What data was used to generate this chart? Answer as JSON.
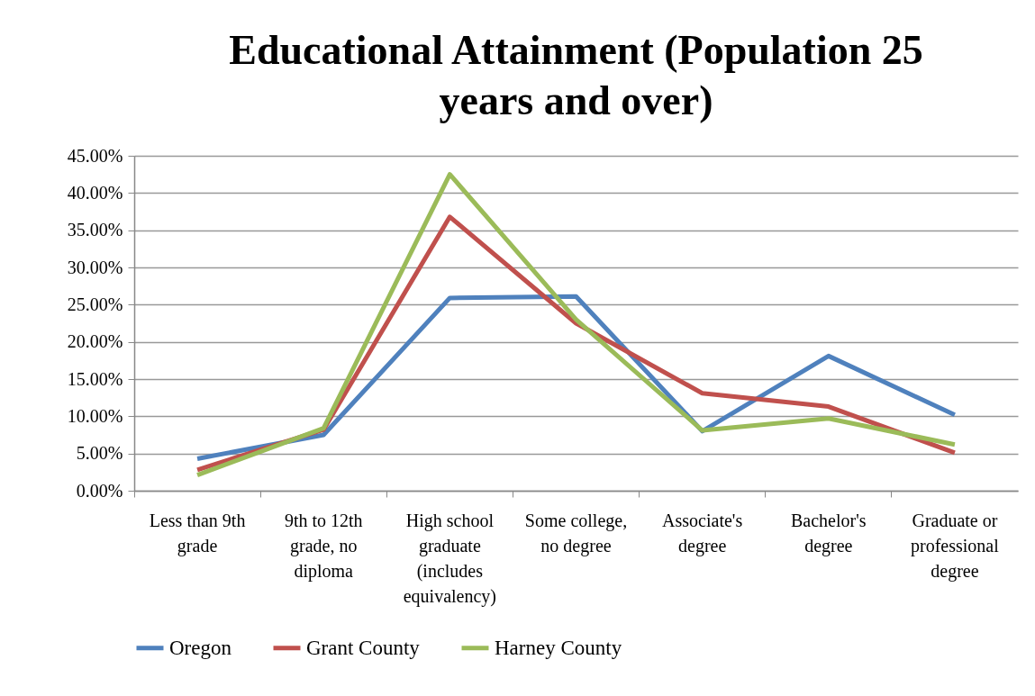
{
  "chart_data": {
    "type": "line",
    "title": "Educational Attainment (Population 25 years and over)",
    "categories": [
      "Less than 9th grade",
      "9th to 12th grade, no diploma",
      "High school graduate (includes equivalency)",
      "Some college, no degree",
      "Associate's degree",
      "Bachelor's degree",
      "Graduate or professional degree"
    ],
    "series": [
      {
        "name": "Oregon",
        "color": "#4f81bd",
        "values": [
          4.3,
          7.5,
          25.9,
          26.1,
          8.0,
          18.1,
          10.2
        ]
      },
      {
        "name": "Grant County",
        "color": "#c0504d",
        "values": [
          2.8,
          8.2,
          36.8,
          22.5,
          13.1,
          11.3,
          5.1
        ]
      },
      {
        "name": "Harney County",
        "color": "#9bbb59",
        "values": [
          2.1,
          8.4,
          42.5,
          23.0,
          8.1,
          9.7,
          6.2
        ]
      }
    ],
    "ylim": [
      0,
      45
    ],
    "yticks": [
      {
        "value": 0,
        "label": "0.00%"
      },
      {
        "value": 5,
        "label": "5.00%"
      },
      {
        "value": 10,
        "label": "10.00%"
      },
      {
        "value": 15,
        "label": "15.00%"
      },
      {
        "value": 20,
        "label": "20.00%"
      },
      {
        "value": 25,
        "label": "25.00%"
      },
      {
        "value": 30,
        "label": "30.00%"
      },
      {
        "value": 35,
        "label": "35.00%"
      },
      {
        "value": 40,
        "label": "40.00%"
      },
      {
        "value": 45,
        "label": "45.00%"
      }
    ],
    "grid": "y",
    "legend": "bottom",
    "marker": "none",
    "line_style": "solid"
  }
}
